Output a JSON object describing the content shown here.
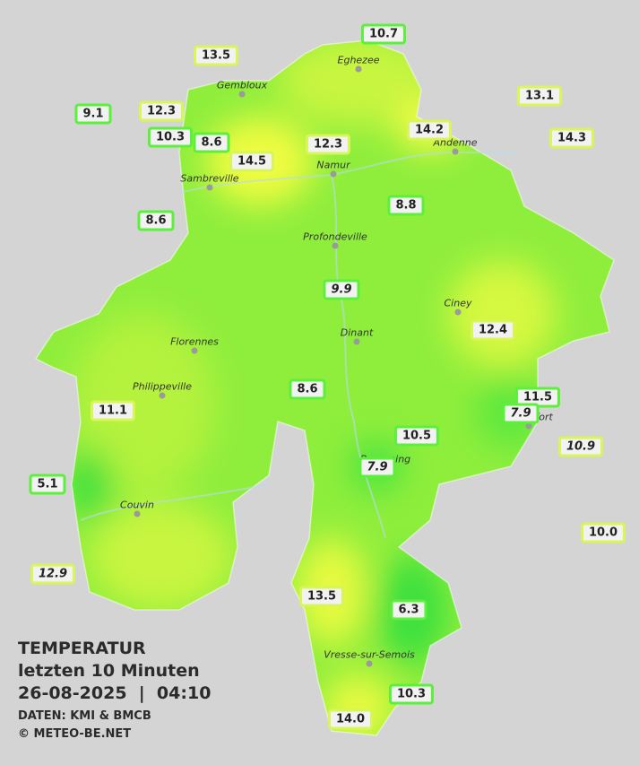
{
  "header": {
    "title": "TEMPERATUR",
    "subtitle": "letzten 10 Minuten",
    "datetime": "26-08-2025  |  04:10",
    "source": "DATEN: KMI & BMCB",
    "copyright": "© METEO-BE.NET"
  },
  "towns": [
    "Eghezee",
    "Gembloux",
    "Andenne",
    "Namur",
    "Sambreville",
    "Profondeville",
    "Ciney",
    "Dinant",
    "Florennes",
    "Philippeville",
    "Rochefort",
    "Beauraing",
    "Couvin",
    "Vresse-sur-Semois"
  ],
  "stations": [
    "10.7",
    "13.5",
    "9.1",
    "12.3",
    "13.1",
    "10.3",
    "8.6",
    "14.5",
    "12.3",
    "14.2",
    "14.3",
    "8.6",
    "8.8",
    "9.9",
    "12.4",
    "8.6",
    "11.5",
    "7.9",
    "11.1",
    "10.9",
    "10.5",
    "7.9",
    "5.1",
    "10.0",
    "12.9",
    "13.5",
    "6.3",
    "10.3",
    "14.0"
  ]
}
